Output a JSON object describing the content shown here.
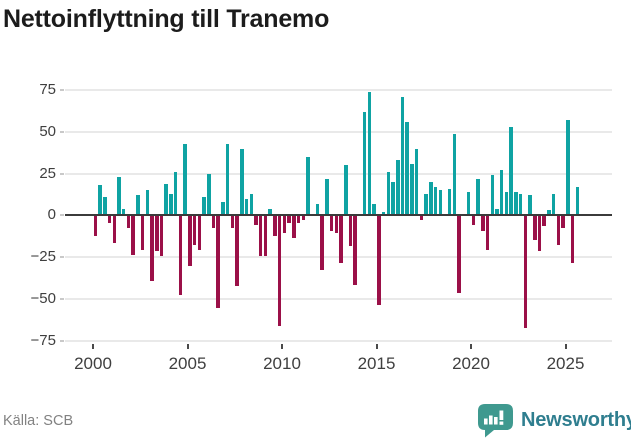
{
  "title": "Nettoinflyttning till Tranemo",
  "source": "Källa: SCB",
  "branding": {
    "name": "Newsworthy"
  },
  "colors": {
    "positive": "#0fa3a3",
    "negative": "#9b1048",
    "zero_line": "#3b3b3b",
    "gridline": "#e9e9e9",
    "axis_text": "#3f3f3f",
    "title_text": "#1c1c1c",
    "source_text": "#828282",
    "brand_text": "#2f7e8f",
    "brand_icon": "#3f998f"
  },
  "chart_data": {
    "type": "bar",
    "title": "Nettoinflyttning till Tranemo",
    "xlabel": "",
    "ylabel": "",
    "period": "quarterly",
    "start": "2000Q1",
    "end": "2025Q3",
    "x_ticks": [
      2000,
      2005,
      2010,
      2015,
      2020,
      2025
    ],
    "y_ticks": [
      75,
      50,
      25,
      0,
      -25,
      -50,
      -75
    ],
    "ylim": [
      -75,
      75
    ],
    "grid": true,
    "legend": false,
    "series": [
      {
        "name": "Nettoinflyttning",
        "values": [
          -12,
          18,
          11,
          -4,
          -16,
          23,
          4,
          -7,
          -23,
          12,
          -20,
          15,
          -39,
          -21,
          -24,
          19,
          13,
          26,
          -47,
          43,
          -30,
          -17,
          -20,
          11,
          25,
          -7,
          -55,
          8,
          43,
          -7,
          -42,
          40,
          10,
          13,
          -5,
          -24,
          -24,
          4,
          -12,
          -66,
          -10,
          -4,
          -13,
          -4,
          -2,
          35,
          0,
          7,
          -32,
          22,
          -9,
          -10,
          -28,
          30,
          -18,
          -41,
          0,
          62,
          74,
          7,
          -53,
          2,
          26,
          20,
          33,
          71,
          56,
          31,
          40,
          -2,
          13,
          20,
          17,
          15,
          0,
          16,
          49,
          -46,
          0,
          14,
          -5,
          22,
          -9,
          -20,
          24,
          4,
          27,
          14,
          53,
          14,
          13,
          -67,
          12,
          -14,
          -21,
          -6,
          3,
          13,
          -17,
          -7,
          57,
          -28,
          17
        ]
      }
    ]
  }
}
